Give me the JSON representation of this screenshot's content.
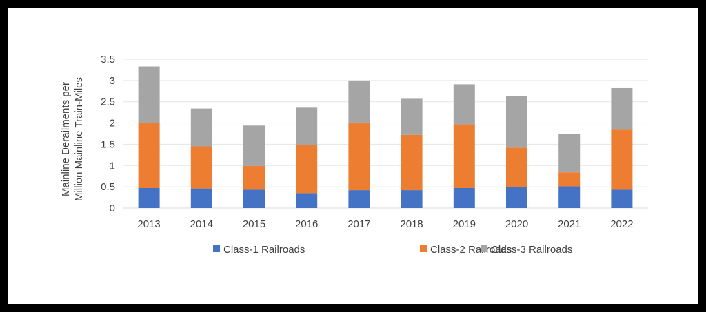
{
  "chart_data": {
    "type": "bar",
    "stacked": true,
    "title": "",
    "xlabel": "",
    "ylabel": [
      "Mainline Derailments per",
      "Million Mainline Train-Miles"
    ],
    "ylim": [
      0,
      3.5
    ],
    "yticks": [
      0,
      0.5,
      1,
      1.5,
      2,
      2.5,
      3,
      3.5
    ],
    "ytick_labels": [
      "0",
      "0.5",
      "1",
      "1.5",
      "2",
      "2.5",
      "3",
      "3.5"
    ],
    "grid": true,
    "legend_position": "bottom",
    "categories": [
      "2013",
      "2014",
      "2015",
      "2016",
      "2017",
      "2018",
      "2019",
      "2020",
      "2021",
      "2022"
    ],
    "series": [
      {
        "name": "Class-1 Railroads",
        "color": "#4472C4",
        "values": [
          0.47,
          0.46,
          0.43,
          0.35,
          0.42,
          0.42,
          0.47,
          0.49,
          0.51,
          0.43
        ]
      },
      {
        "name": "Class-2 Railroads",
        "color": "#ED7D31",
        "values": [
          1.53,
          0.99,
          0.56,
          1.14,
          1.59,
          1.3,
          1.5,
          0.93,
          0.33,
          1.41
        ]
      },
      {
        "name": "Class-3 Railroads",
        "color": "#A5A5A5",
        "values": [
          1.33,
          0.89,
          0.95,
          0.87,
          0.99,
          0.85,
          0.94,
          1.22,
          0.9,
          0.98
        ]
      }
    ],
    "totals": [
      3.33,
      2.34,
      1.94,
      2.36,
      3.0,
      2.57,
      2.91,
      2.64,
      1.74,
      2.82
    ]
  }
}
